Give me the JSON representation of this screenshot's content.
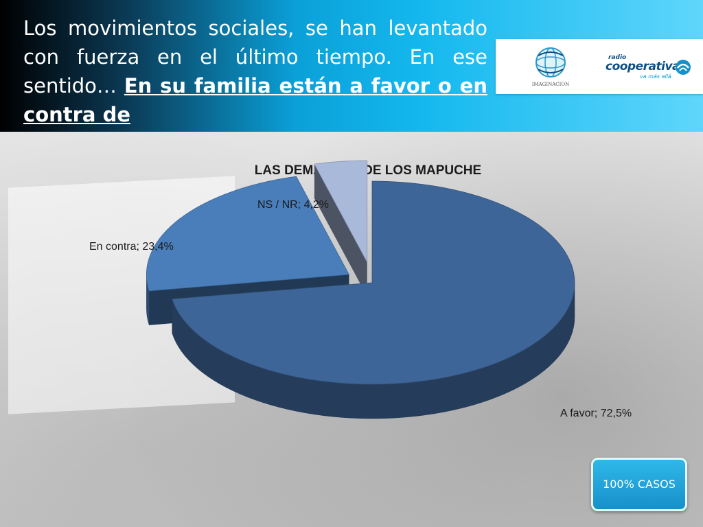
{
  "header": {
    "title_plain": "Los movimientos sociales, se han levantado con fuerza en el último tiempo. En ese sentido… ",
    "title_emph": "En su familia están a favor o en contra de"
  },
  "logos": {
    "imaginacion": {
      "text": "IMAGINACION",
      "icon": "globe-logo-icon"
    },
    "cooperativa": {
      "radio": "radio",
      "name": "cooperativa",
      "tagline": "va más allá",
      "icon": "cooperativa-swirl-icon"
    }
  },
  "chart_data": {
    "type": "pie",
    "title": "LAS DEMANDAS DE LOS MAPUCHE",
    "slices": [
      {
        "label": "A favor",
        "value": 72.5,
        "display": "A favor; 72,5%",
        "color": "#3e6598"
      },
      {
        "label": "En contra",
        "value": 23.4,
        "display": "En contra; 23,4%",
        "color": "#4a7ebb"
      },
      {
        "label": "NS / NR",
        "value": 4.2,
        "display": "NS / NR; 4,2%",
        "color": "#a9b9d9"
      }
    ],
    "style": "3d-exploded"
  },
  "badge": {
    "label": "100% CASOS"
  }
}
